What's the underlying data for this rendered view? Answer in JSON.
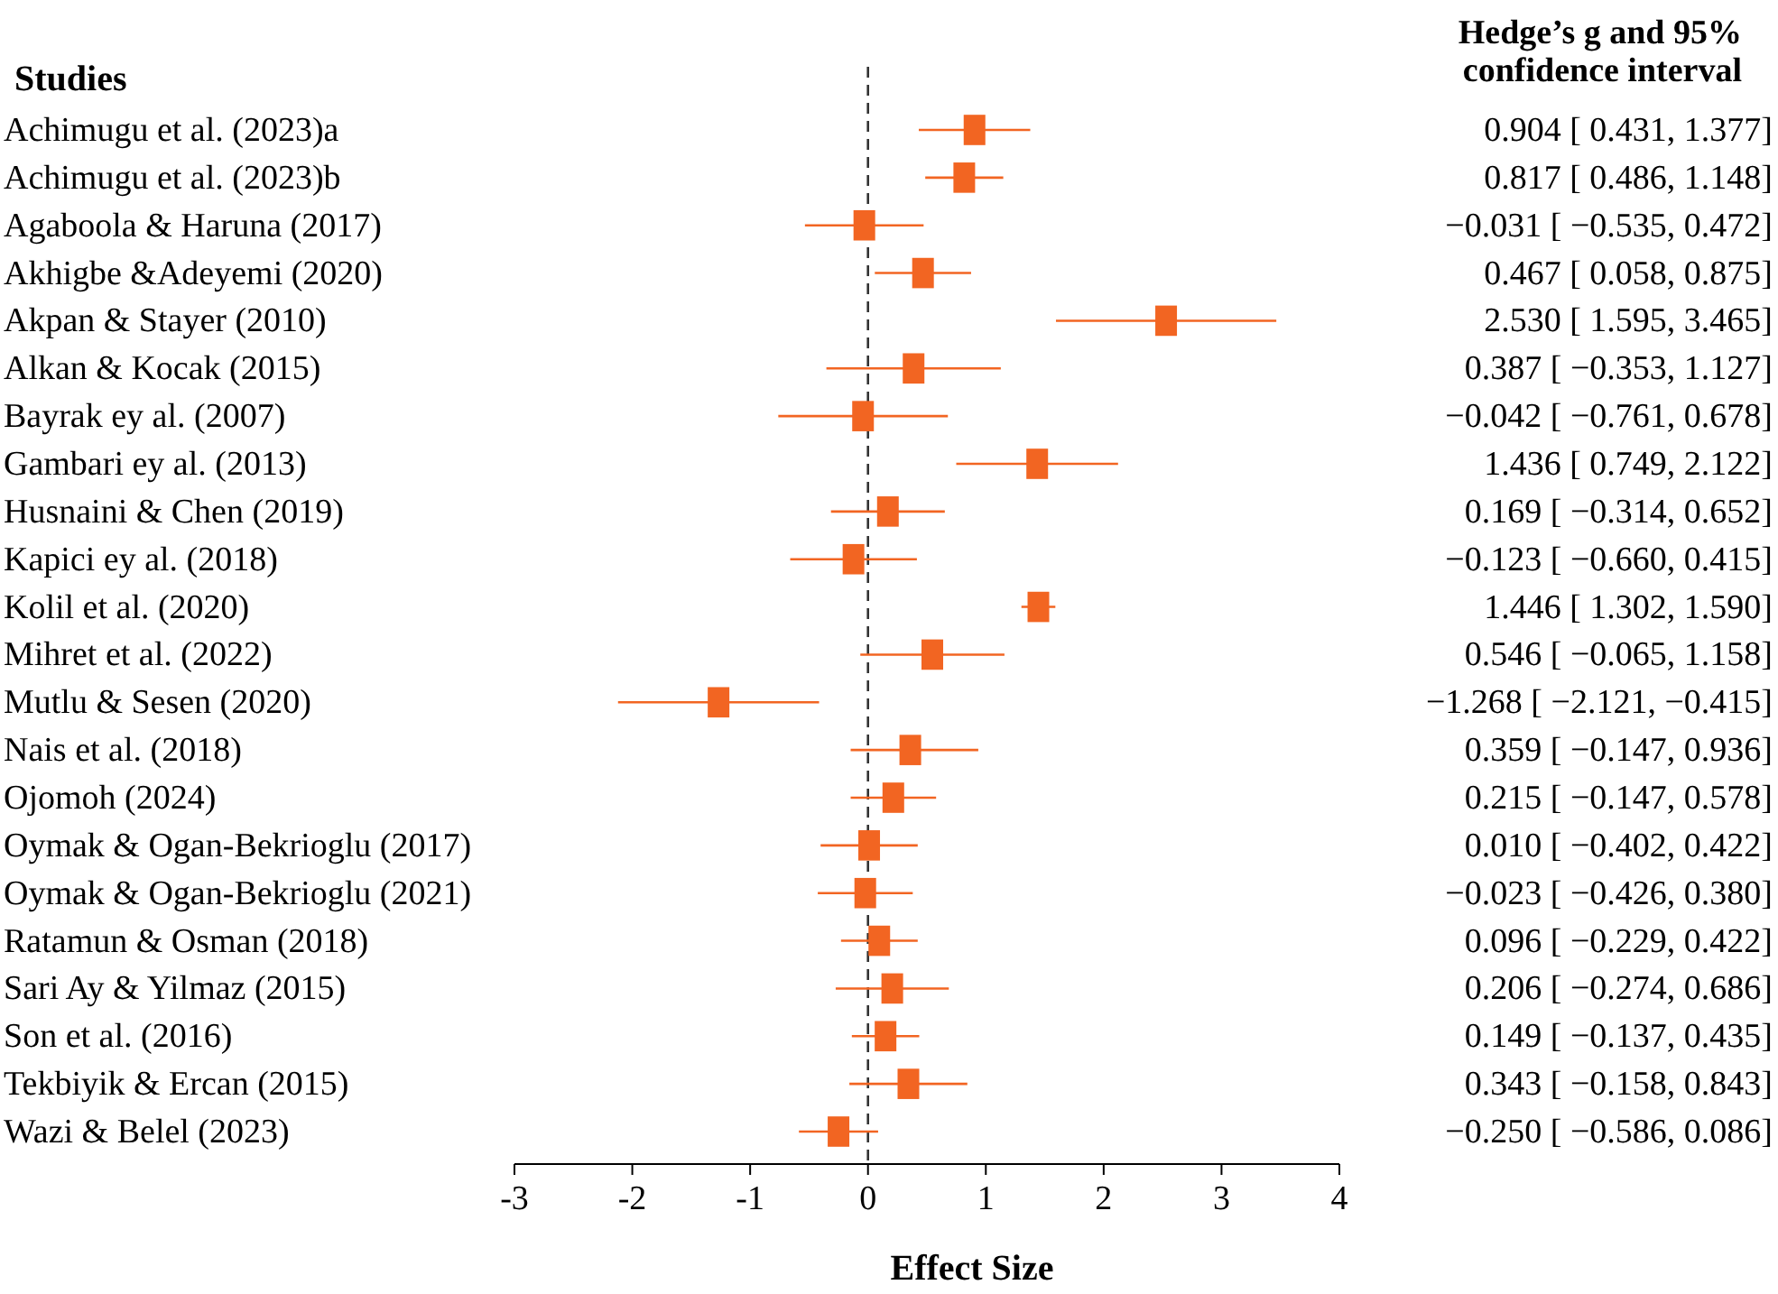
{
  "chart_data": {
    "type": "scatter",
    "orientation": "horizontal",
    "ylabel": "Studies",
    "xlabel": "Effect Size",
    "y2label": "Hedge’s g and 95% confidence interval",
    "categories": [
      "Achimugu et al. (2023)a",
      "Achimugu et al. (2023)b",
      "Agaboola & Haruna (2017)",
      "Akhigbe &Adeyemi (2020)",
      "Akpan & Stayer (2010)",
      "Alkan & Kocak (2015)",
      "Bayrak ey al. (2007)",
      "Gambari ey al. (2013)",
      "Husnaini & Chen (2019)",
      "Kapici ey al. (2018)",
      "Kolil et al. (2020)",
      "Mihret et al. (2022)",
      "Mutlu & Sesen (2020)",
      "Nais et al. (2018)",
      "Ojomoh (2024)",
      "Oymak & Ogan-Bekrioglu (2017)",
      "Oymak & Ogan-Bekrioglu (2021)",
      "Ratamun & Osman (2018)",
      "Sari Ay & Yilmaz (2015)",
      "Son et al. (2016)",
      "Tekbiyik & Ercan (2015)",
      "Wazi & Belel (2023)"
    ],
    "values": [
      0.904,
      0.817,
      -0.031,
      0.467,
      2.53,
      0.387,
      -0.042,
      1.436,
      0.169,
      -0.123,
      1.446,
      0.546,
      -1.268,
      0.359,
      0.215,
      0.01,
      -0.023,
      0.096,
      0.206,
      0.149,
      0.343,
      -0.25
    ],
    "errors": [
      [
        0.431,
        1.377
      ],
      [
        0.486,
        1.148
      ],
      [
        -0.535,
        0.472
      ],
      [
        0.058,
        0.875
      ],
      [
        1.595,
        3.465
      ],
      [
        -0.353,
        1.127
      ],
      [
        -0.761,
        0.678
      ],
      [
        0.749,
        2.122
      ],
      [
        -0.314,
        0.652
      ],
      [
        -0.66,
        0.415
      ],
      [
        1.302,
        1.59
      ],
      [
        -0.065,
        1.158
      ],
      [
        -2.121,
        -0.415
      ],
      [
        -0.147,
        0.936
      ],
      [
        -0.147,
        0.578
      ],
      [
        -0.402,
        0.422
      ],
      [
        -0.426,
        0.38
      ],
      [
        -0.229,
        0.422
      ],
      [
        -0.274,
        0.686
      ],
      [
        -0.137,
        0.435
      ],
      [
        -0.158,
        0.843
      ],
      [
        -0.586,
        0.086
      ]
    ],
    "value_labels": [
      "0.904 [ 0.431, 1.377]",
      "0.817 [ 0.486, 1.148]",
      "−0.031 [ −0.535, 0.472]",
      "0.467 [ 0.058, 0.875]",
      "2.530 [ 1.595, 3.465]",
      "0.387 [ −0.353, 1.127]",
      "−0.042 [ −0.761, 0.678]",
      "1.436 [ 0.749, 2.122]",
      "0.169 [ −0.314, 0.652]",
      "−0.123 [ −0.660, 0.415]",
      "1.446 [ 1.302, 1.590]",
      "0.546 [ −0.065, 1.158]",
      "−1.268 [ −2.121, −0.415]",
      "0.359 [ −0.147, 0.936]",
      "0.215 [ −0.147, 0.578]",
      "0.010 [ −0.402, 0.422]",
      "−0.023 [ −0.426, 0.380]",
      "0.096 [ −0.229, 0.422]",
      "0.206 [ −0.274, 0.686]",
      "0.149 [ −0.137, 0.435]",
      "0.343 [ −0.158, 0.843]",
      "−0.250 [ −0.586, 0.086]"
    ],
    "color": "#f26522",
    "marker": "square",
    "xlim": [
      -3,
      4
    ],
    "xticks": [
      {
        "value": -3,
        "label": "-3"
      },
      {
        "value": -2,
        "label": "-2"
      },
      {
        "value": -1,
        "label": "-1"
      },
      0,
      1,
      2,
      3,
      4
    ],
    "ref_lines": [
      {
        "axis": "x",
        "value": 0,
        "line_style": "dashed",
        "color": "#333333"
      }
    ],
    "grid": false
  }
}
